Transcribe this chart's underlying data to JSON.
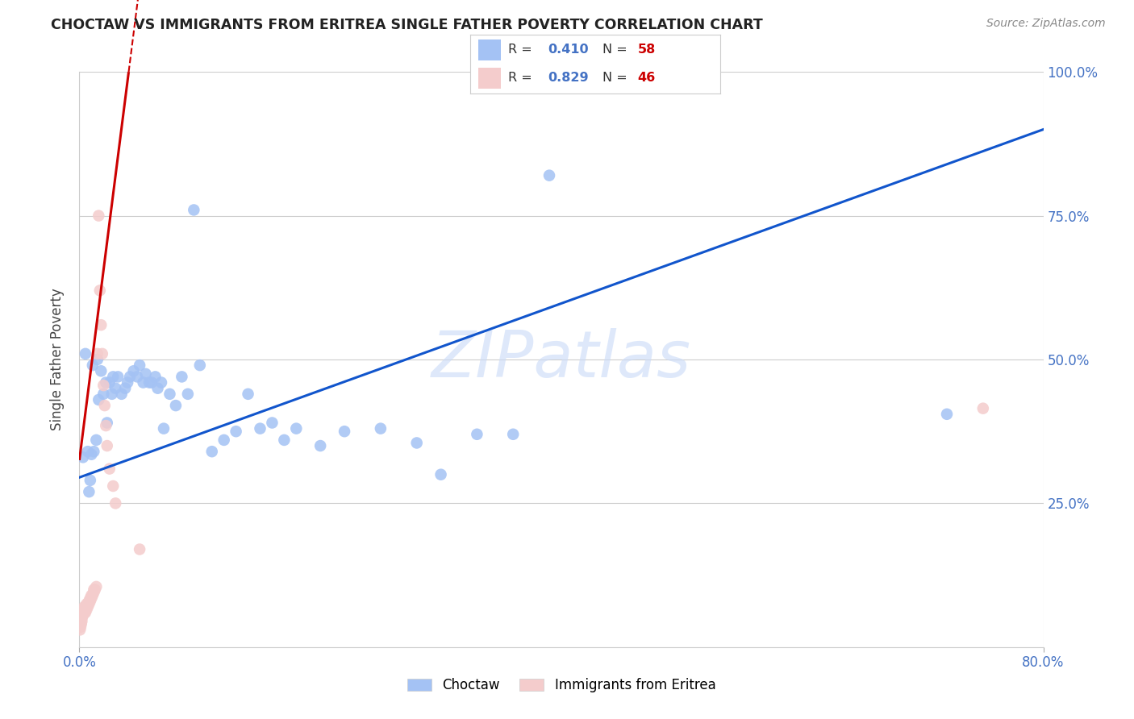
{
  "title": "CHOCTAW VS IMMIGRANTS FROM ERITREA SINGLE FATHER POVERTY CORRELATION CHART",
  "source": "Source: ZipAtlas.com",
  "ylabel": "Single Father Poverty",
  "legend_label1": "Choctaw",
  "legend_label2": "Immigrants from Eritrea",
  "R1": 0.41,
  "N1": 58,
  "R2": 0.829,
  "N2": 46,
  "watermark": "ZIPatlas",
  "color_blue": "#a4c2f4",
  "color_pink": "#f4cccc",
  "color_blue_line": "#1155cc",
  "color_pink_line": "#cc0000",
  "xmin": 0.0,
  "xmax": 0.8,
  "ymin": 0.0,
  "ymax": 1.0,
  "blue_line_x": [
    0.0,
    0.8
  ],
  "blue_line_y": [
    0.295,
    0.9
  ],
  "pink_line_x0": 0.0,
  "pink_line_y0": 0.325,
  "pink_line_slope": 16.5,
  "choctaw_x": [
    0.003,
    0.005,
    0.007,
    0.008,
    0.009,
    0.01,
    0.011,
    0.012,
    0.014,
    0.015,
    0.016,
    0.018,
    0.02,
    0.022,
    0.023,
    0.025,
    0.027,
    0.028,
    0.03,
    0.032,
    0.035,
    0.038,
    0.04,
    0.042,
    0.045,
    0.048,
    0.05,
    0.053,
    0.055,
    0.058,
    0.06,
    0.063,
    0.065,
    0.068,
    0.07,
    0.075,
    0.08,
    0.085,
    0.09,
    0.095,
    0.1,
    0.11,
    0.12,
    0.13,
    0.14,
    0.15,
    0.16,
    0.17,
    0.18,
    0.2,
    0.22,
    0.25,
    0.28,
    0.3,
    0.33,
    0.36,
    0.72,
    0.39
  ],
  "choctaw_y": [
    0.33,
    0.51,
    0.34,
    0.27,
    0.29,
    0.335,
    0.49,
    0.34,
    0.36,
    0.5,
    0.43,
    0.48,
    0.44,
    0.46,
    0.39,
    0.46,
    0.44,
    0.47,
    0.45,
    0.47,
    0.44,
    0.45,
    0.46,
    0.47,
    0.48,
    0.47,
    0.49,
    0.46,
    0.475,
    0.46,
    0.46,
    0.47,
    0.45,
    0.46,
    0.38,
    0.44,
    0.42,
    0.47,
    0.44,
    0.76,
    0.49,
    0.34,
    0.36,
    0.375,
    0.44,
    0.38,
    0.39,
    0.36,
    0.38,
    0.35,
    0.375,
    0.38,
    0.355,
    0.3,
    0.37,
    0.37,
    0.405,
    0.82
  ],
  "eritrea_x": [
    0.0005,
    0.001,
    0.001,
    0.0015,
    0.002,
    0.002,
    0.002,
    0.003,
    0.003,
    0.003,
    0.004,
    0.004,
    0.004,
    0.005,
    0.005,
    0.005,
    0.006,
    0.006,
    0.006,
    0.007,
    0.007,
    0.008,
    0.008,
    0.009,
    0.009,
    0.01,
    0.01,
    0.011,
    0.012,
    0.012,
    0.013,
    0.014,
    0.015,
    0.016,
    0.017,
    0.018,
    0.019,
    0.02,
    0.021,
    0.022,
    0.023,
    0.025,
    0.028,
    0.03,
    0.75,
    0.05
  ],
  "eritrea_y": [
    0.03,
    0.035,
    0.04,
    0.04,
    0.045,
    0.05,
    0.06,
    0.055,
    0.06,
    0.065,
    0.06,
    0.065,
    0.07,
    0.06,
    0.065,
    0.07,
    0.065,
    0.07,
    0.075,
    0.07,
    0.075,
    0.075,
    0.08,
    0.08,
    0.085,
    0.085,
    0.09,
    0.09,
    0.095,
    0.1,
    0.1,
    0.105,
    0.51,
    0.75,
    0.62,
    0.56,
    0.51,
    0.455,
    0.42,
    0.385,
    0.35,
    0.31,
    0.28,
    0.25,
    0.415,
    0.17
  ]
}
